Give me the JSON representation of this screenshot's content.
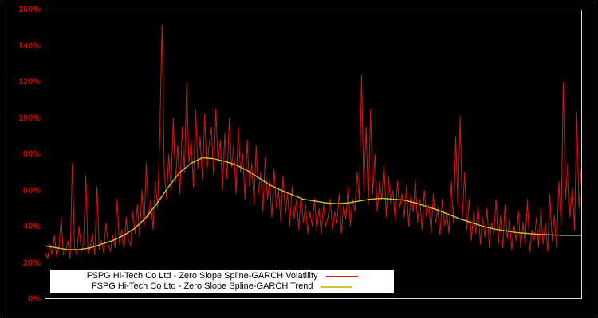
{
  "chart_data": {
    "type": "line",
    "title": "",
    "xlabel": "",
    "ylabel": "",
    "ylim": [
      0,
      1.6
    ],
    "yticks": [
      "0%",
      "20%",
      "40%",
      "60%",
      "80%",
      "100%",
      "120%",
      "140%",
      "160%"
    ],
    "grid": false,
    "legend_position": "bottom-center-inside",
    "background_color": "#000000",
    "frame_color": "#dcdcdc",
    "tick_color": "#cc0000",
    "legend_background": "#ffffff",
    "x_count": 240,
    "series": [
      {
        "id": "volatility",
        "name": "FSPG Hi-Tech Co Ltd - Zero Slope Spline-GARCH Volatility",
        "color": "#d01818",
        "width": 1,
        "values": [
          0.25,
          0.22,
          0.3,
          0.24,
          0.35,
          0.23,
          0.28,
          0.45,
          0.24,
          0.26,
          0.32,
          0.22,
          0.75,
          0.28,
          0.24,
          0.4,
          0.26,
          0.3,
          0.68,
          0.25,
          0.28,
          0.36,
          0.24,
          0.62,
          0.27,
          0.32,
          0.25,
          0.42,
          0.3,
          0.26,
          0.35,
          0.28,
          0.55,
          0.3,
          0.38,
          0.27,
          0.45,
          0.33,
          0.29,
          0.48,
          0.36,
          0.52,
          0.34,
          0.6,
          0.4,
          0.75,
          0.45,
          0.55,
          0.38,
          0.65,
          0.5,
          0.9,
          1.52,
          0.7,
          0.55,
          0.8,
          0.6,
          1.0,
          0.65,
          0.85,
          0.58,
          0.95,
          0.7,
          1.2,
          0.75,
          0.88,
          0.62,
          1.05,
          0.72,
          0.9,
          0.65,
          1.02,
          0.7,
          0.85,
          0.95,
          0.68,
          1.05,
          0.75,
          0.88,
          0.6,
          0.92,
          0.66,
          1.0,
          0.73,
          0.85,
          0.58,
          0.95,
          0.7,
          0.8,
          0.55,
          0.88,
          0.62,
          0.75,
          0.52,
          0.85,
          0.58,
          0.7,
          0.48,
          0.78,
          0.55,
          0.65,
          0.45,
          0.72,
          0.5,
          0.6,
          0.42,
          0.68,
          0.47,
          0.58,
          0.4,
          0.62,
          0.44,
          0.55,
          0.38,
          0.58,
          0.42,
          0.52,
          0.36,
          0.48,
          0.4,
          0.55,
          0.38,
          0.5,
          0.35,
          0.52,
          0.4,
          0.45,
          0.55,
          0.38,
          0.48,
          0.42,
          0.58,
          0.36,
          0.52,
          0.44,
          0.62,
          0.4,
          0.55,
          0.48,
          0.7,
          0.55,
          1.24,
          0.6,
          0.95,
          0.52,
          1.05,
          0.58,
          0.8,
          0.48,
          0.65,
          0.55,
          0.75,
          0.45,
          0.68,
          0.52,
          0.6,
          0.42,
          0.65,
          0.5,
          0.58,
          0.45,
          0.62,
          0.4,
          0.58,
          0.48,
          0.66,
          0.42,
          0.55,
          0.38,
          0.6,
          0.45,
          0.52,
          0.36,
          0.58,
          0.42,
          0.5,
          0.35,
          0.55,
          0.4,
          0.48,
          0.36,
          0.65,
          0.42,
          0.9,
          0.5,
          1.01,
          0.45,
          0.7,
          0.38,
          0.55,
          0.32,
          0.48,
          0.36,
          0.52,
          0.3,
          0.45,
          0.34,
          0.5,
          0.28,
          0.42,
          0.35,
          0.55,
          0.3,
          0.46,
          0.28,
          0.52,
          0.33,
          0.44,
          0.27,
          0.4,
          0.32,
          0.48,
          0.28,
          0.42,
          0.3,
          0.55,
          0.26,
          0.38,
          0.32,
          0.45,
          0.28,
          0.5,
          0.3,
          0.42,
          0.26,
          0.58,
          0.32,
          0.46,
          0.28,
          0.65,
          0.4,
          1.2,
          0.55,
          0.75,
          0.45,
          0.62,
          0.38,
          1.03,
          0.5,
          0.72
        ]
      },
      {
        "id": "trend",
        "name": "FSPG Hi-Tech Co Ltd - Zero Slope Spline-GARCH Trend",
        "color": "#c8c832",
        "width": 1.4,
        "points": [
          [
            0,
            0.29
          ],
          [
            5,
            0.28
          ],
          [
            10,
            0.27
          ],
          [
            15,
            0.27
          ],
          [
            20,
            0.28
          ],
          [
            25,
            0.3
          ],
          [
            30,
            0.32
          ],
          [
            35,
            0.35
          ],
          [
            40,
            0.39
          ],
          [
            45,
            0.45
          ],
          [
            50,
            0.53
          ],
          [
            55,
            0.62
          ],
          [
            60,
            0.7
          ],
          [
            65,
            0.75
          ],
          [
            70,
            0.78
          ],
          [
            75,
            0.775
          ],
          [
            80,
            0.76
          ],
          [
            85,
            0.74
          ],
          [
            90,
            0.71
          ],
          [
            95,
            0.67
          ],
          [
            100,
            0.63
          ],
          [
            105,
            0.6
          ],
          [
            110,
            0.575
          ],
          [
            115,
            0.55
          ],
          [
            120,
            0.54
          ],
          [
            125,
            0.53
          ],
          [
            130,
            0.525
          ],
          [
            135,
            0.53
          ],
          [
            140,
            0.54
          ],
          [
            145,
            0.55
          ],
          [
            150,
            0.555
          ],
          [
            155,
            0.55
          ],
          [
            160,
            0.545
          ],
          [
            165,
            0.53
          ],
          [
            170,
            0.51
          ],
          [
            175,
            0.49
          ],
          [
            180,
            0.465
          ],
          [
            185,
            0.44
          ],
          [
            190,
            0.42
          ],
          [
            195,
            0.4
          ],
          [
            200,
            0.385
          ],
          [
            205,
            0.375
          ],
          [
            210,
            0.365
          ],
          [
            215,
            0.36
          ],
          [
            220,
            0.355
          ],
          [
            225,
            0.352
          ],
          [
            230,
            0.35
          ],
          [
            235,
            0.35
          ],
          [
            239,
            0.35
          ]
        ]
      }
    ]
  }
}
